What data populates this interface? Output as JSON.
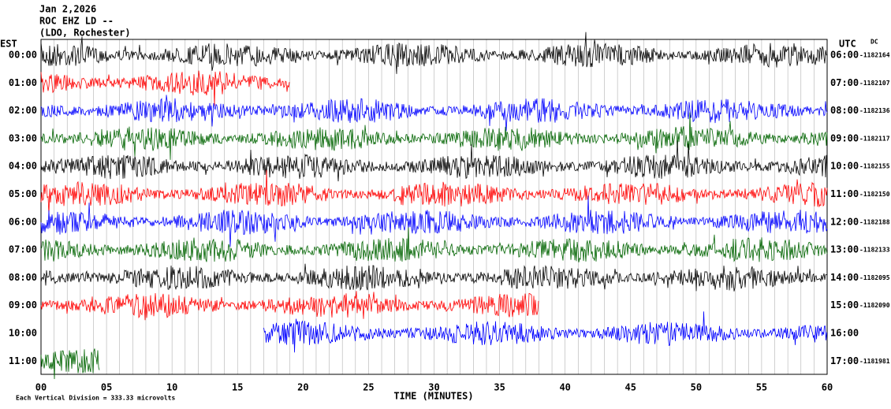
{
  "header": {
    "date": "Jan 2,2026",
    "station": "ROC EHZ LD --",
    "location": "(LDO, Rochester)"
  },
  "left_zone": "EST",
  "right_zone": "UTC",
  "dc_label": "DC",
  "rows": [
    {
      "est": "00:00",
      "utc": "06:00",
      "dc": "-1182164",
      "color": "#000000",
      "start": 0,
      "end": 60
    },
    {
      "est": "01:00",
      "utc": "07:00",
      "dc": "-1182107",
      "color": "#ff0000",
      "start": 0,
      "end": 19
    },
    {
      "est": "02:00",
      "utc": "08:00",
      "dc": "-1182136",
      "color": "#0000ff",
      "start": 0,
      "end": 60
    },
    {
      "est": "03:00",
      "utc": "09:00",
      "dc": "-1182117",
      "color": "#006400",
      "start": 0,
      "end": 60
    },
    {
      "est": "04:00",
      "utc": "10:00",
      "dc": "-1182155",
      "color": "#000000",
      "start": 0,
      "end": 60
    },
    {
      "est": "05:00",
      "utc": "11:00",
      "dc": "-1182150",
      "color": "#ff0000",
      "start": 0,
      "end": 60
    },
    {
      "est": "06:00",
      "utc": "12:00",
      "dc": "-1182188",
      "color": "#0000ff",
      "start": 0,
      "end": 60
    },
    {
      "est": "07:00",
      "utc": "13:00",
      "dc": "-1182133",
      "color": "#006400",
      "start": 0,
      "end": 60
    },
    {
      "est": "08:00",
      "utc": "14:00",
      "dc": "-1182095",
      "color": "#000000",
      "start": 0,
      "end": 60
    },
    {
      "est": "09:00",
      "utc": "15:00",
      "dc": "-1182090",
      "color": "#ff0000",
      "start": 0,
      "end": 38
    },
    {
      "est": "10:00",
      "utc": "16:00",
      "dc": null,
      "color": "#0000ff",
      "start": 17,
      "end": 60
    },
    {
      "est": "11:00",
      "utc": "17:00",
      "dc": "-1181981",
      "color": "#006400",
      "start": 0,
      "end": 4.5
    }
  ],
  "x_axis": {
    "labels": [
      "00",
      "05",
      "10",
      "15",
      "20",
      "25",
      "30",
      "35",
      "40",
      "45",
      "50",
      "55",
      "60"
    ],
    "title": "TIME (MINUTES)"
  },
  "footer": "Each Vertical Division =  333.33 microvolts"
}
